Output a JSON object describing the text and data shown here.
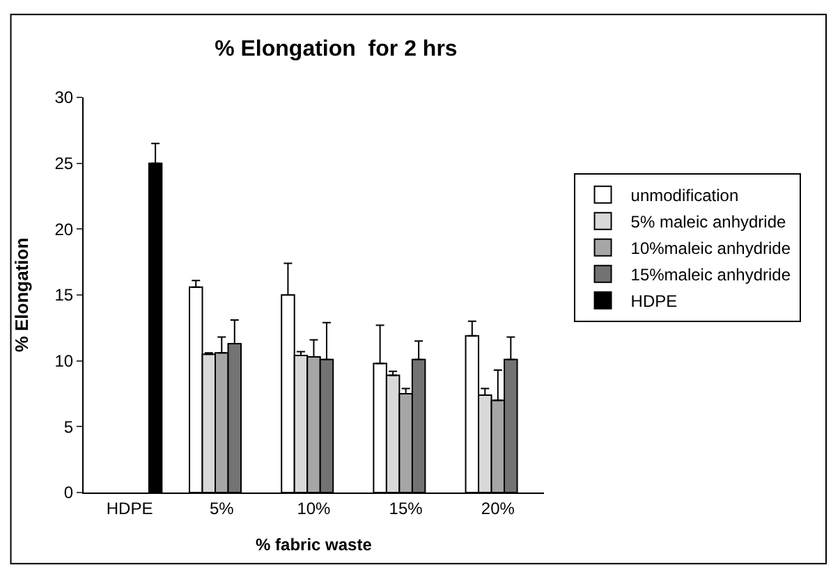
{
  "chart_data": {
    "type": "bar",
    "title": "% Elongation  for 2 hrs",
    "xlabel": "% fabric waste",
    "ylabel": "% Elongation",
    "categories": [
      "HDPE",
      "5%",
      "10%",
      "15%",
      "20%"
    ],
    "series": [
      {
        "name": "unmodification",
        "color": "#ffffff",
        "values": [
          null,
          15.6,
          15.0,
          9.8,
          11.9
        ],
        "errors": [
          null,
          [
            15.6,
            16.1
          ],
          [
            15.0,
            17.4
          ],
          [
            9.8,
            12.7
          ],
          [
            11.9,
            13.0
          ]
        ]
      },
      {
        "name": "5% maleic anhydride",
        "color": "#d9d9d9",
        "values": [
          null,
          10.5,
          10.4,
          8.9,
          7.4
        ],
        "errors": [
          null,
          [
            10.5,
            10.6
          ],
          [
            10.4,
            10.7
          ],
          [
            8.9,
            9.2
          ],
          [
            7.4,
            7.9
          ]
        ]
      },
      {
        "name": "10%maleic anhydride",
        "color": "#a6a6a6",
        "values": [
          null,
          10.6,
          10.3,
          7.5,
          7.0
        ],
        "errors": [
          null,
          [
            10.6,
            11.8
          ],
          [
            10.3,
            11.6
          ],
          [
            7.5,
            7.9
          ],
          [
            7.0,
            9.3
          ]
        ]
      },
      {
        "name": "15%maleic anhydride",
        "color": "#737373",
        "values": [
          null,
          11.3,
          10.1,
          10.1,
          10.1
        ],
        "errors": [
          null,
          [
            11.3,
            13.1
          ],
          [
            10.1,
            12.9
          ],
          [
            10.1,
            11.5
          ],
          [
            10.1,
            11.8
          ]
        ]
      },
      {
        "name": "HDPE",
        "color": "#000000",
        "values": [
          25.0,
          null,
          null,
          null,
          null
        ],
        "errors": [
          [
            25.0,
            26.5
          ],
          null,
          null,
          null,
          null
        ]
      }
    ],
    "ylim": [
      0,
      30
    ],
    "yticks": [
      0,
      5,
      10,
      15,
      20,
      25,
      30
    ],
    "legend": "right"
  }
}
